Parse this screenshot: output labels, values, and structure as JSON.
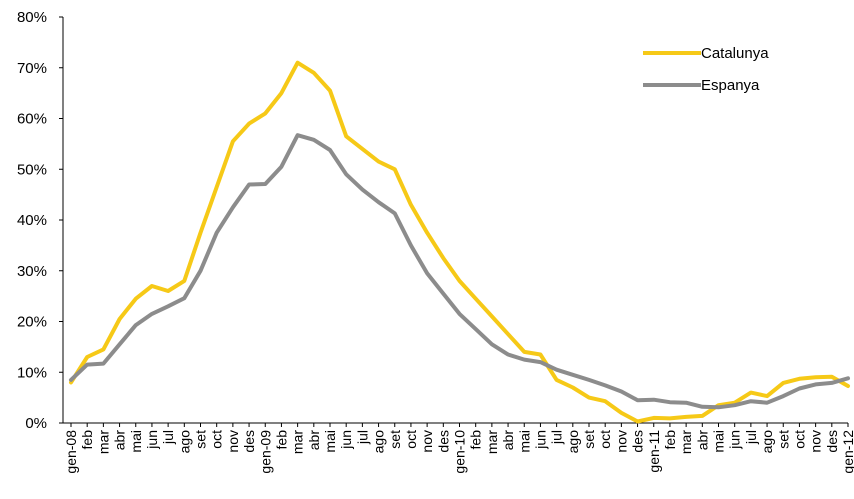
{
  "chart_data": {
    "type": "line",
    "title": "",
    "xlabel": "",
    "ylabel": "",
    "ylim": [
      0,
      80
    ],
    "y_ticks": [
      "0%",
      "10%",
      "20%",
      "30%",
      "40%",
      "50%",
      "60%",
      "70%",
      "80%"
    ],
    "legend_position": "top-right",
    "grid": false,
    "categories": [
      "gen-08",
      "feb",
      "mar",
      "abr",
      "mai",
      "jun",
      "jul",
      "ago",
      "set",
      "oct",
      "nov",
      "des",
      "gen-09",
      "feb",
      "mar",
      "abr",
      "mai",
      "jun",
      "jul",
      "ago",
      "set",
      "oct",
      "nov",
      "des",
      "gen-10",
      "feb",
      "mar",
      "abr",
      "mai",
      "jun",
      "jul",
      "ago",
      "set",
      "oct",
      "nov",
      "des",
      "gen-11",
      "feb",
      "mar",
      "abr",
      "mai",
      "jun",
      "jul",
      "ago",
      "set",
      "oct",
      "nov",
      "des",
      "gen-12"
    ],
    "series": [
      {
        "name": "Catalunya",
        "color": "#F6C917",
        "values": [
          8,
          13,
          14.5,
          20.5,
          24.5,
          27,
          26,
          28,
          37.5,
          46.5,
          55.5,
          59,
          61,
          65,
          71,
          69,
          65.5,
          56.5,
          54,
          51.5,
          50,
          43,
          37.5,
          32.5,
          28,
          24.5,
          21,
          17.5,
          14,
          13.5,
          8.5,
          7,
          5,
          4.3,
          2,
          0.3,
          1,
          0.9,
          1.2,
          1.4,
          3.5,
          4,
          6,
          5.3,
          7.9,
          8.7,
          9,
          9.1,
          7.3
        ]
      },
      {
        "name": "Espanya",
        "color": "#8C8C8C",
        "values": [
          8.5,
          11.5,
          11.7,
          15.5,
          19.3,
          21.5,
          23,
          24.6,
          30,
          37.5,
          42.5,
          47,
          47.1,
          50.5,
          56.7,
          55.8,
          53.8,
          49,
          46,
          43.5,
          41.3,
          35,
          29.5,
          25.5,
          21.5,
          18.5,
          15.5,
          13.5,
          12.5,
          12,
          10.5,
          9.5,
          8.5,
          7.4,
          6.2,
          4.5,
          4.6,
          4.1,
          4,
          3.2,
          3.1,
          3.5,
          4.3,
          4,
          5.3,
          6.8,
          7.6,
          7.9,
          8.8
        ]
      }
    ]
  }
}
